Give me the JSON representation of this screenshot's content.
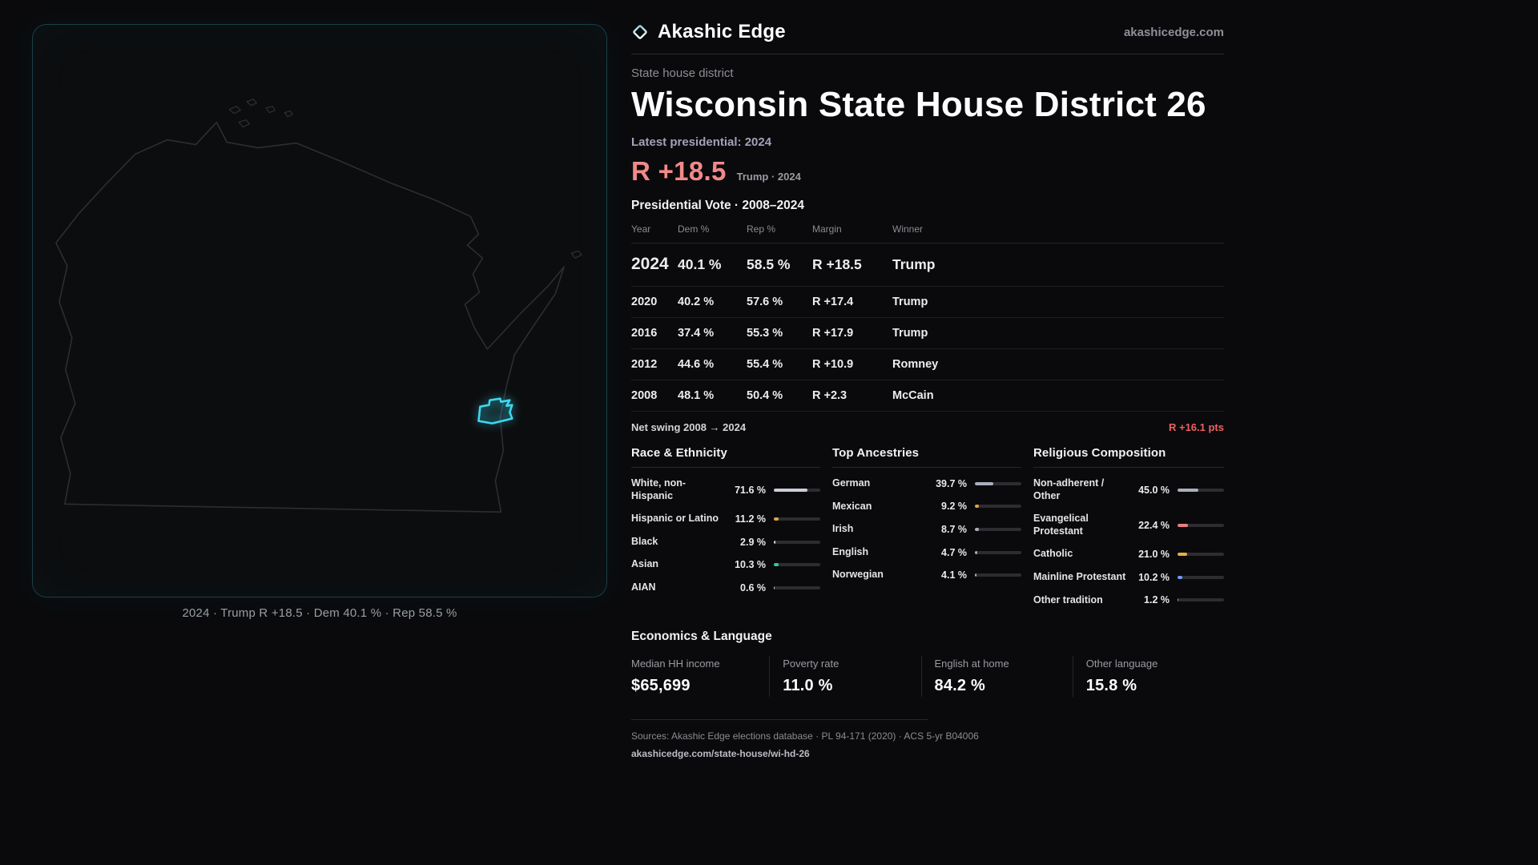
{
  "brand": {
    "name": "Akashic Edge",
    "domain": "akashicedge.com"
  },
  "map": {
    "caption": "2024 · Trump R +18.5 · Dem 40.1 % · Rep 58.5 %"
  },
  "page": {
    "kicker": "State house district",
    "title": "Wisconsin State House District 26",
    "latest": "Latest presidential: 2024",
    "margin_big": "R +18.5",
    "margin_caption": "Trump · 2024"
  },
  "vote_table": {
    "title": "Presidential Vote · 2008–2024",
    "columns": [
      "Year",
      "Dem %",
      "Rep %",
      "Margin",
      "Winner"
    ],
    "rows": [
      {
        "year": "2024",
        "dem": "40.1 %",
        "rep": "58.5 %",
        "margin": "R +18.5",
        "winner": "Trump",
        "emphasis": true
      },
      {
        "year": "2020",
        "dem": "40.2 %",
        "rep": "57.6 %",
        "margin": "R +17.4",
        "winner": "Trump",
        "emphasis": false
      },
      {
        "year": "2016",
        "dem": "37.4 %",
        "rep": "55.3 %",
        "margin": "R +17.9",
        "winner": "Trump",
        "emphasis": false
      },
      {
        "year": "2012",
        "dem": "44.6 %",
        "rep": "55.4 %",
        "margin": "R +10.9",
        "winner": "Romney",
        "emphasis": false
      },
      {
        "year": "2008",
        "dem": "48.1 %",
        "rep": "50.4 %",
        "margin": "R +2.3",
        "winner": "McCain",
        "emphasis": false
      }
    ]
  },
  "net_swing": {
    "label": "Net swing 2008 → 2024",
    "value": "R +16.1 pts"
  },
  "demographics": {
    "columns": [
      {
        "title": "Race & Ethnicity",
        "rows": [
          {
            "label": "White, non-Hispanic",
            "value": "71.6 %",
            "pct": 71.6,
            "color": "#c9cfd8"
          },
          {
            "label": "Hispanic or Latino",
            "value": "11.2 %",
            "pct": 11.2,
            "color": "#e3a43e"
          },
          {
            "label": "Black",
            "value": "2.9 %",
            "pct": 2.9,
            "color": "#d6dae1"
          },
          {
            "label": "Asian",
            "value": "10.3 %",
            "pct": 10.3,
            "color": "#35c9a0"
          },
          {
            "label": "AIAN",
            "value": "0.6 %",
            "pct": 0.6,
            "color": "#d6dae1"
          }
        ]
      },
      {
        "title": "Top Ancestries",
        "rows": [
          {
            "label": "German",
            "value": "39.7 %",
            "pct": 39.7,
            "color": "#a9b0ba"
          },
          {
            "label": "Mexican",
            "value": "9.2 %",
            "pct": 9.2,
            "color": "#e3a43e"
          },
          {
            "label": "Irish",
            "value": "8.7 %",
            "pct": 8.7,
            "color": "#a9b0ba"
          },
          {
            "label": "English",
            "value": "4.7 %",
            "pct": 4.7,
            "color": "#a9b0ba"
          },
          {
            "label": "Norwegian",
            "value": "4.1 %",
            "pct": 4.1,
            "color": "#a9b0ba"
          }
        ]
      },
      {
        "title": "Religious Composition",
        "rows": [
          {
            "label": "Non-adherent / Other",
            "value": "45.0 %",
            "pct": 45.0,
            "color": "#a9b0ba"
          },
          {
            "label": "Evangelical Protestant",
            "value": "22.4 %",
            "pct": 22.4,
            "color": "#e88080"
          },
          {
            "label": "Catholic",
            "value": "21.0 %",
            "pct": 21.0,
            "color": "#e2b13e"
          },
          {
            "label": "Mainline Protestant",
            "value": "10.2 %",
            "pct": 10.2,
            "color": "#6f9df8"
          },
          {
            "label": "Other tradition",
            "value": "1.2 %",
            "pct": 1.2,
            "color": "#a9b0ba"
          }
        ]
      }
    ]
  },
  "economics": {
    "title": "Economics & Language",
    "stats": [
      {
        "label": "Median HH income",
        "value": "$65,699"
      },
      {
        "label": "Poverty rate",
        "value": "11.0 %"
      },
      {
        "label": "English at home",
        "value": "84.2 %"
      },
      {
        "label": "Other language",
        "value": "15.8 %"
      }
    ]
  },
  "footer": {
    "sources": "Sources: Akashic Edge elections database · PL 94-171 (2020) · ACS 5-yr B04006",
    "permalink": "akashicedge.com/state-house/wi-hd-26"
  }
}
